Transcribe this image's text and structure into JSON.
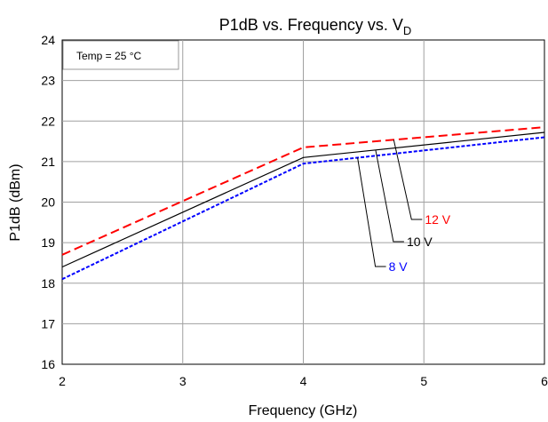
{
  "chart_data": {
    "type": "line",
    "title": "P1dB vs. Frequency vs. V",
    "title_subscript": "D",
    "xlabel": "Frequency (GHz)",
    "ylabel": "P1dB (dBm)",
    "xlim": [
      2,
      6
    ],
    "ylim": [
      16,
      24
    ],
    "xticks": [
      2,
      3,
      4,
      5,
      6
    ],
    "yticks": [
      16,
      17,
      18,
      19,
      20,
      21,
      22,
      23,
      24
    ],
    "grid": true,
    "annotation": "Temp = 25 °C",
    "series": [
      {
        "name": "12 V",
        "color": "#ff0000",
        "dash": "dashed",
        "x": [
          2,
          4,
          6
        ],
        "y": [
          18.7,
          21.35,
          21.85
        ]
      },
      {
        "name": "10 V",
        "color": "#000000",
        "dash": "solid",
        "x": [
          2,
          4,
          6
        ],
        "y": [
          18.4,
          21.1,
          21.72
        ]
      },
      {
        "name": "8 V",
        "color": "#0000ff",
        "dash": "dotted",
        "x": [
          2,
          4,
          6
        ],
        "y": [
          18.1,
          20.95,
          21.6
        ]
      }
    ]
  }
}
